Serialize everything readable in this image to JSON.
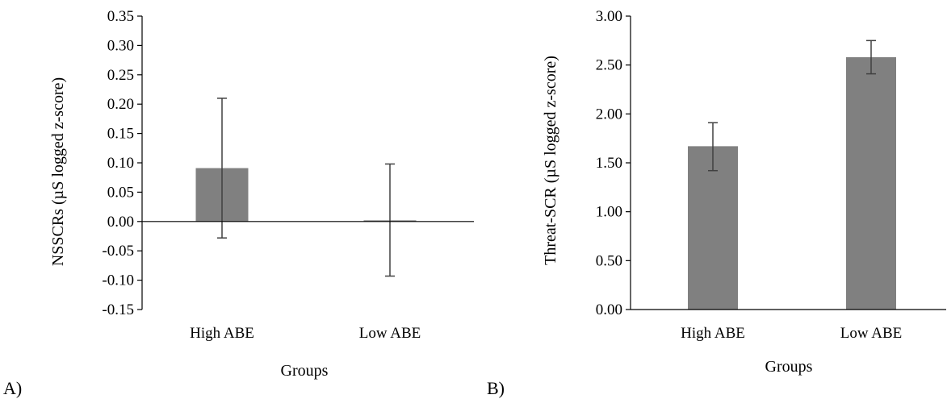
{
  "chart_data": [
    {
      "type": "bar",
      "panel_label": "A)",
      "categories": [
        "High ABE",
        "Low ABE"
      ],
      "values": [
        0.091,
        0.002
      ],
      "error_low": [
        -0.028,
        -0.093
      ],
      "error_high": [
        0.21,
        0.098
      ],
      "xlabel": "Groups",
      "ylabel": "NSSCRs (µS logged z-score)",
      "ylim": [
        -0.15,
        0.35
      ],
      "yticks": [
        "-0.15",
        "-0.10",
        "-0.05",
        "0.00",
        "0.05",
        "0.10",
        "0.15",
        "0.20",
        "0.25",
        "0.30",
        "0.35"
      ],
      "bar_color": "#808080",
      "grid": false
    },
    {
      "type": "bar",
      "panel_label": "B)",
      "categories": [
        "High ABE",
        "Low ABE"
      ],
      "values": [
        1.67,
        2.58
      ],
      "error_low": [
        1.42,
        2.41
      ],
      "error_high": [
        1.91,
        2.75
      ],
      "xlabel": "Groups",
      "ylabel": "Threat-SCR (µS logged z-score)",
      "ylim": [
        0,
        3
      ],
      "yticks": [
        "0.00",
        "0.50",
        "1.00",
        "1.50",
        "2.00",
        "2.50",
        "3.00"
      ],
      "bar_color": "#808080",
      "grid": false
    }
  ]
}
